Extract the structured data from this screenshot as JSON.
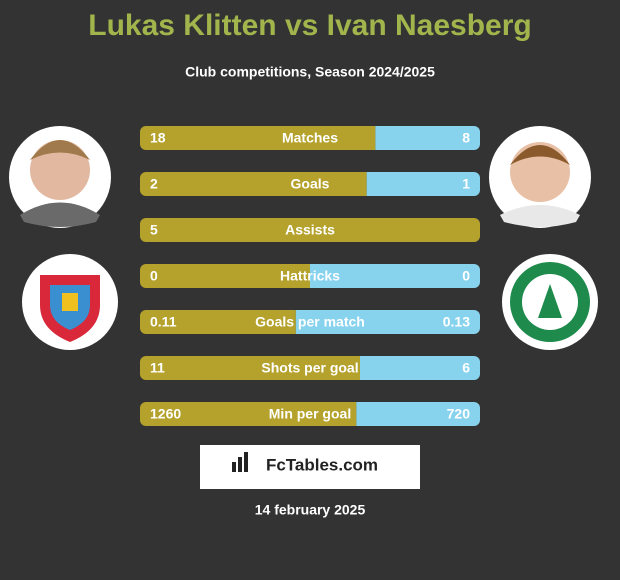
{
  "header": {
    "title": "Lukas Klitten vs Ivan Naesberg",
    "subtitle": "Club competitions, Season 2024/2025"
  },
  "rows": [
    {
      "label": "Matches",
      "left": 18,
      "right": 8
    },
    {
      "label": "Goals",
      "left": 2,
      "right": 1
    },
    {
      "label": "Assists",
      "left": 5,
      "right": null
    },
    {
      "label": "Hattricks",
      "left": 0,
      "right": 0
    },
    {
      "label": "Goals per match",
      "left": 0.11,
      "right": 0.13
    },
    {
      "label": "Shots per goal",
      "left": 11,
      "right": 6
    },
    {
      "label": "Min per goal",
      "left": 1260,
      "right": 720
    }
  ],
  "brand": "FcTables.com",
  "date": "14 february 2025"
}
